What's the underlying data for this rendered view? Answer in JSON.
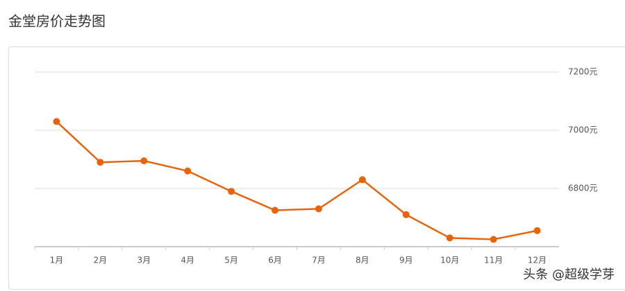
{
  "chart_data": {
    "type": "line",
    "title": "金堂房价走势图",
    "categories": [
      "1月",
      "2月",
      "3月",
      "4月",
      "5月",
      "6月",
      "7月",
      "8月",
      "9月",
      "10月",
      "11月",
      "12月"
    ],
    "series": [
      {
        "color": "#e8640c",
        "values": [
          7030,
          6890,
          6895,
          6860,
          6790,
          6725,
          6730,
          6830,
          6710,
          6630,
          6625,
          6655
        ]
      }
    ],
    "ylim": [
      6600,
      7200
    ],
    "yticks": [
      {
        "value": 7200,
        "label": "7200元"
      },
      {
        "value": 7000,
        "label": "7000元"
      },
      {
        "value": 6800,
        "label": "6800元"
      }
    ],
    "grid": true,
    "watermark": "头条 @超级学芽"
  }
}
